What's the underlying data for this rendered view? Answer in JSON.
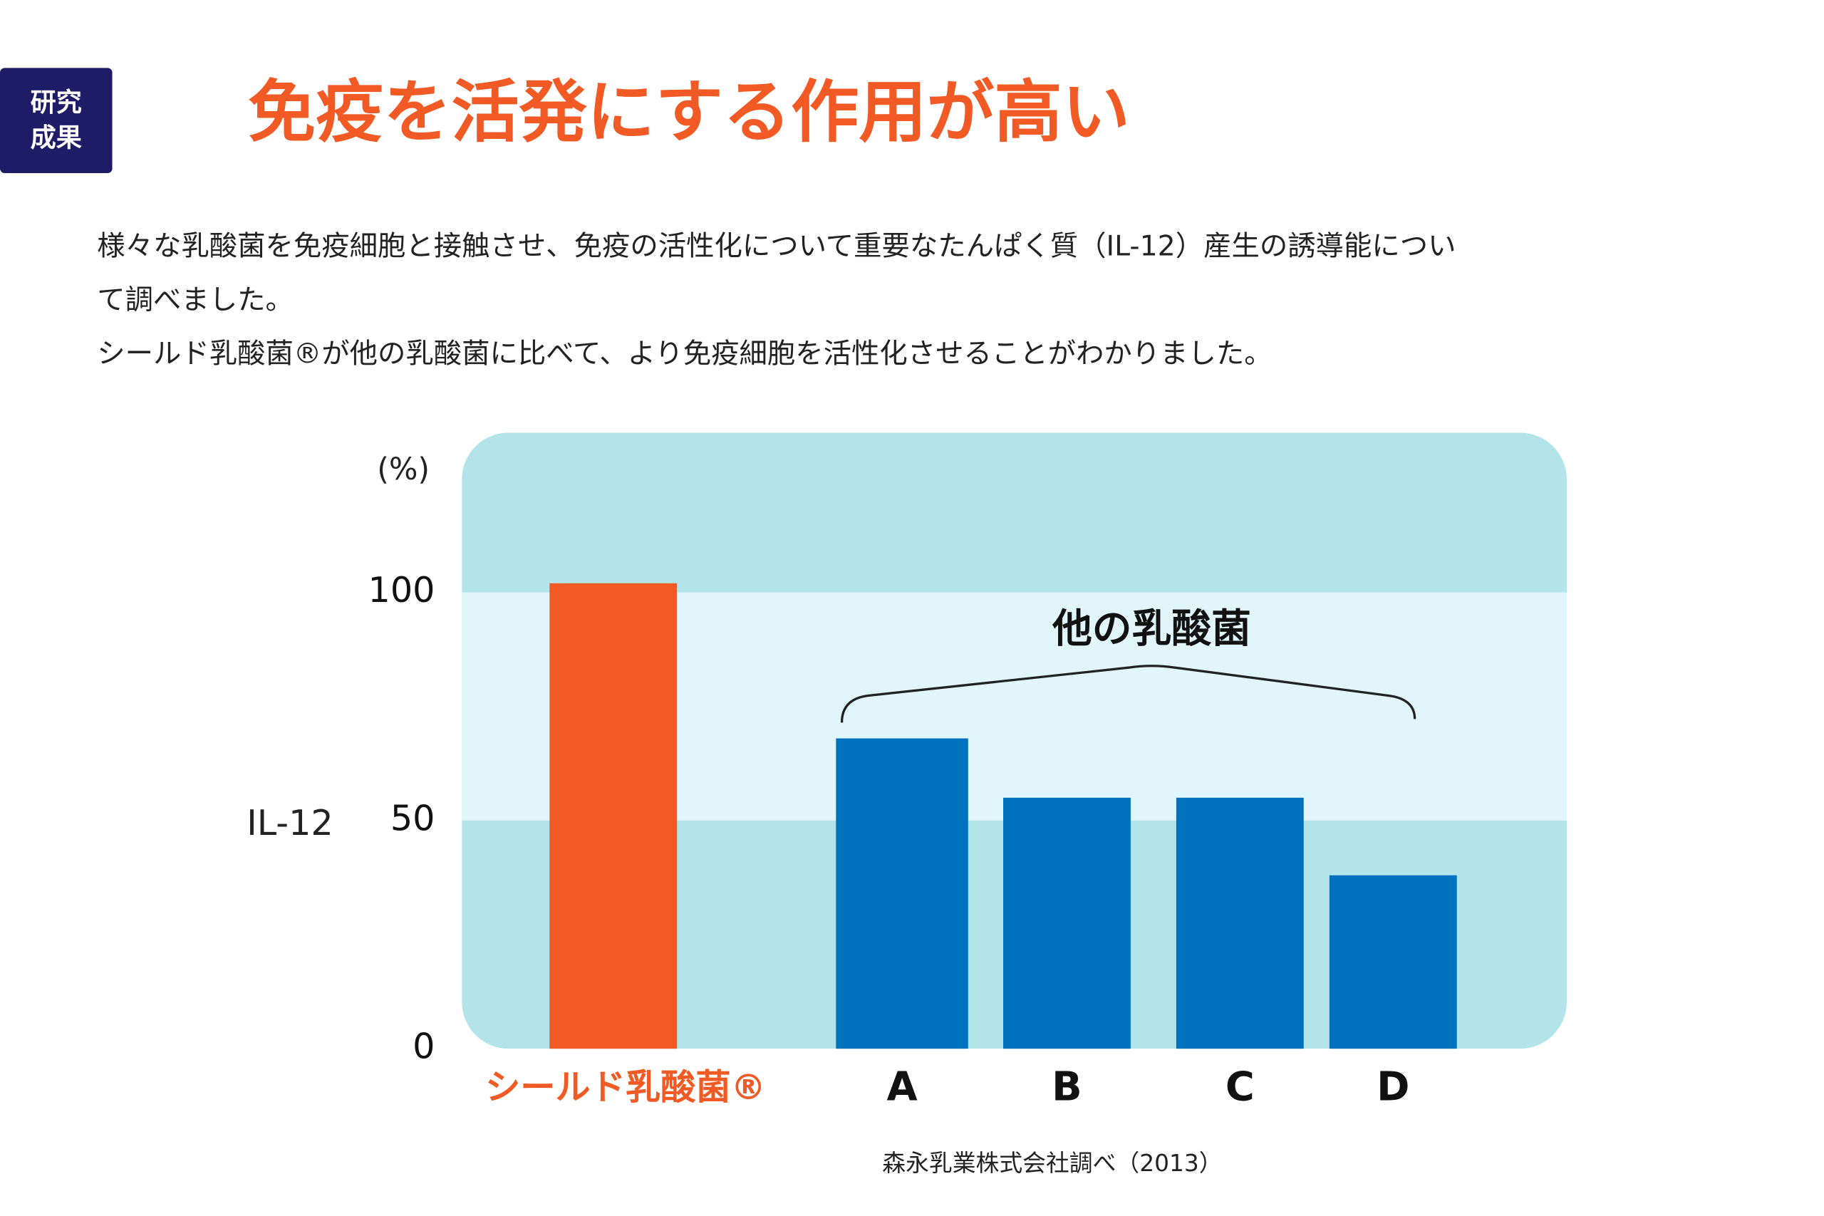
{
  "header": {
    "badge": [
      "研究",
      "成果"
    ],
    "title": "免疫を活発にする作用が高い"
  },
  "body": [
    "様々な乳酸菌を免疫細胞と接触させ、免疫の活性化について重要なたんぱく質（IL-12）産生の誘導能につい",
    "て調べました。",
    "シールド乳酸菌®が他の乳酸菌に比べて、より免疫細胞を活性化させることがわかりました。"
  ],
  "chart_data": {
    "type": "bar",
    "unit": "(%)",
    "y_label": "IL-12",
    "categories": [
      "シールド乳酸菌®",
      "A",
      "B",
      "C",
      "D"
    ],
    "values": [
      102,
      68,
      55,
      55,
      38
    ],
    "colors": [
      "#f15a24",
      "#0071bc",
      "#0071bc",
      "#0071bc",
      "#0071bc"
    ],
    "ylim": [
      0,
      135
    ],
    "yticks": [
      0,
      50,
      100
    ],
    "annotation": "他の乳酸菌",
    "source": "森永乳業株式会社調べ（2013）"
  }
}
